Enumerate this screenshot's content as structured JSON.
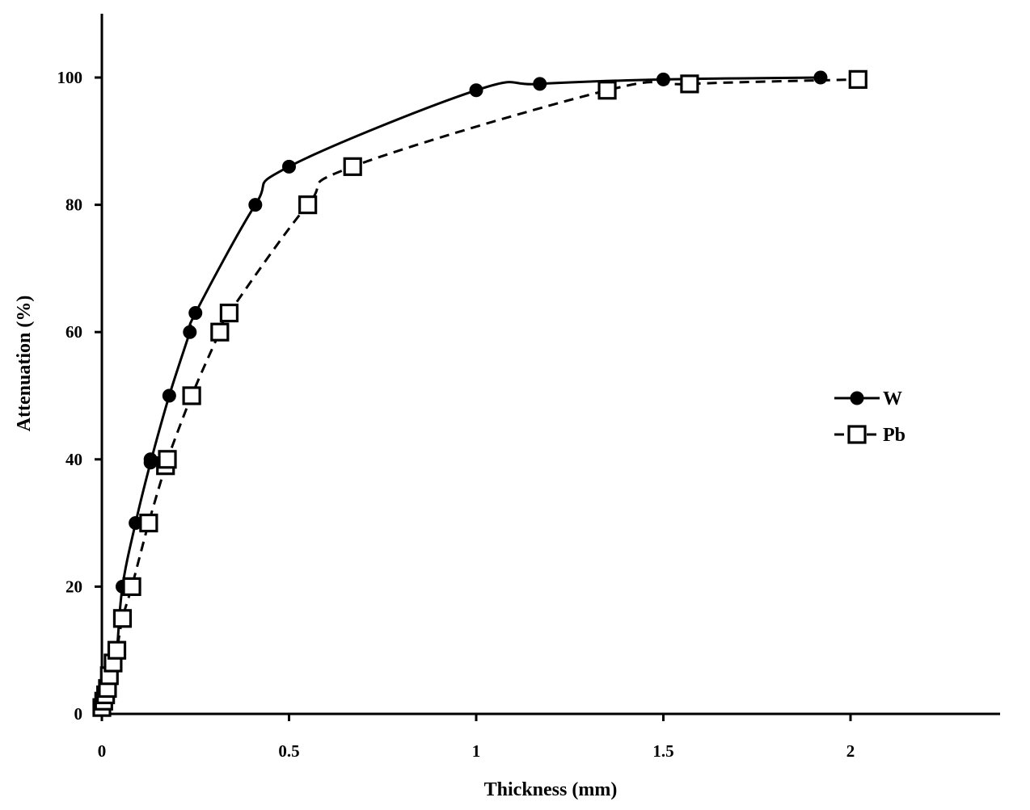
{
  "chart_data": {
    "type": "line",
    "title": "",
    "xlabel": "Thickness (mm)",
    "ylabel": "Attenuation (%)",
    "xlim": [
      0,
      2.4
    ],
    "ylim": [
      0,
      110
    ],
    "xticks": [
      0,
      0.5,
      1,
      1.5,
      2
    ],
    "xtick_labels": [
      "0",
      "0.5",
      "1",
      "1.5",
      "2"
    ],
    "yticks": [
      0,
      20,
      40,
      60,
      80,
      100
    ],
    "ytick_labels": [
      "0",
      "20",
      "40",
      "60",
      "80",
      "100"
    ],
    "grid": false,
    "legend_position": "right",
    "series": [
      {
        "name": "W",
        "marker": "filled-circle",
        "line_style": "solid",
        "color": "#000000",
        "x": [
          0,
          0.005,
          0.01,
          0.015,
          0.02,
          0.03,
          0.04,
          0.055,
          0.09,
          0.13,
          0.13,
          0.18,
          0.235,
          0.25,
          0.41,
          0.5,
          1.0,
          1.17,
          1.5,
          1.92
        ],
        "y": [
          1,
          2,
          3,
          5,
          6,
          8,
          10,
          20,
          30,
          39,
          40,
          50,
          60,
          63,
          80,
          86,
          98,
          99,
          99.7,
          100
        ]
      },
      {
        "name": "Pb",
        "marker": "open-square",
        "line_style": "dashed",
        "color": "#000000",
        "x": [
          0,
          0.005,
          0.01,
          0.015,
          0.02,
          0.03,
          0.04,
          0.055,
          0.08,
          0.125,
          0.17,
          0.175,
          0.24,
          0.315,
          0.34,
          0.55,
          0.67,
          1.35,
          1.57,
          2.02
        ],
        "y": [
          1,
          2,
          3,
          4,
          6,
          8,
          10,
          15,
          20,
          30,
          39,
          40,
          50,
          60,
          63,
          80,
          86,
          98,
          99,
          99.7
        ]
      }
    ]
  }
}
